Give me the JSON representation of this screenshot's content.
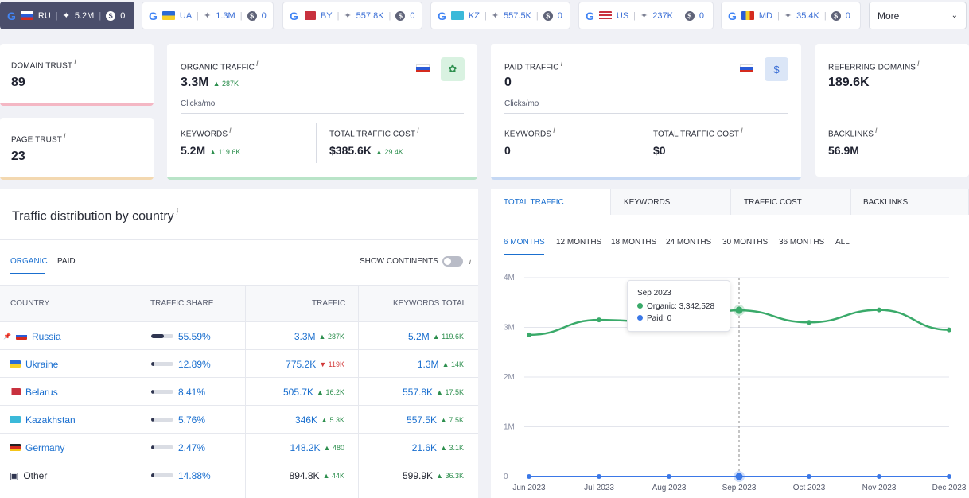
{
  "db_tabs": [
    {
      "code": "RU",
      "traffic": "5.2M",
      "paid": "0",
      "active": true
    },
    {
      "code": "UA",
      "traffic": "1.3M",
      "paid": "0"
    },
    {
      "code": "BY",
      "traffic": "557.8K",
      "paid": "0"
    },
    {
      "code": "KZ",
      "traffic": "557.5K",
      "paid": "0"
    },
    {
      "code": "US",
      "traffic": "237K",
      "paid": "0"
    },
    {
      "code": "MD",
      "traffic": "35.4K",
      "paid": "0"
    }
  ],
  "more_label": "More",
  "domain_trust": {
    "label": "DOMAIN TRUST",
    "value": "89"
  },
  "page_trust": {
    "label": "PAGE TRUST",
    "value": "23"
  },
  "organic": {
    "label": "ORGANIC TRAFFIC",
    "value": "3.3M",
    "delta": "287K",
    "unit": "Clicks/mo",
    "keywords_label": "KEYWORDS",
    "keywords": "5.2M",
    "keywords_delta": "119.6K",
    "cost_label": "TOTAL TRAFFIC COST",
    "cost": "$385.6K",
    "cost_delta": "29.4K"
  },
  "paid": {
    "label": "PAID TRAFFIC",
    "value": "0",
    "unit": "Clicks/mo",
    "keywords_label": "KEYWORDS",
    "keywords": "0",
    "cost_label": "TOTAL TRAFFIC COST",
    "cost": "$0",
    "currency_symbol": "$"
  },
  "referring": {
    "label": "REFERRING DOMAINS",
    "value": "189.6K",
    "backlinks_label": "BACKLINKS",
    "backlinks": "56.9M"
  },
  "info_mark": "i",
  "distribution": {
    "title": "Traffic distribution by country",
    "tab_organic": "ORGANIC",
    "tab_paid": "PAID",
    "show_continents": "SHOW CONTINENTS",
    "headers": {
      "country": "COUNTRY",
      "share": "TRAFFIC SHARE",
      "traffic": "TRAFFIC",
      "keywords": "KEYWORDS TOTAL"
    },
    "rows": [
      {
        "country": "Russia",
        "pin": "📌",
        "share": "55.59%",
        "share_frac": 0.5559,
        "traffic": "3.3M",
        "traffic_delta": "287K",
        "traffic_dir": "up",
        "keywords": "5.2M",
        "keywords_delta": "119.6K"
      },
      {
        "country": "Ukraine",
        "share": "12.89%",
        "share_frac": 0.1289,
        "traffic": "775.2K",
        "traffic_delta": "119K",
        "traffic_dir": "down",
        "keywords": "1.3M",
        "keywords_delta": "14K"
      },
      {
        "country": "Belarus",
        "share": "8.41%",
        "share_frac": 0.0841,
        "traffic": "505.7K",
        "traffic_delta": "16.2K",
        "traffic_dir": "up",
        "keywords": "557.8K",
        "keywords_delta": "17.5K"
      },
      {
        "country": "Kazakhstan",
        "share": "5.76%",
        "share_frac": 0.0576,
        "traffic": "346K",
        "traffic_delta": "5.3K",
        "traffic_dir": "up",
        "keywords": "557.5K",
        "keywords_delta": "7.5K"
      },
      {
        "country": "Germany",
        "share": "2.47%",
        "share_frac": 0.0247,
        "traffic": "148.2K",
        "traffic_delta": "480",
        "traffic_dir": "up",
        "keywords": "21.6K",
        "keywords_delta": "3.1K"
      },
      {
        "country": "Other",
        "share": "14.88%",
        "share_frac": 0.1488,
        "traffic": "894.8K",
        "traffic_delta": "44K",
        "traffic_dir": "up",
        "keywords": "599.9K",
        "keywords_delta": "36.3K",
        "plain": true
      }
    ]
  },
  "chart_tabs": [
    "TOTAL TRAFFIC",
    "KEYWORDS",
    "TRAFFIC COST",
    "BACKLINKS"
  ],
  "periods": [
    "6 MONTHS",
    "12 MONTHS",
    "18 MONTHS",
    "24 MONTHS",
    "30 MONTHS",
    "36 MONTHS",
    "ALL"
  ],
  "tooltip": {
    "date": "Sep 2023",
    "organic": "Organic: 3,342,528",
    "paid": "Paid: 0"
  },
  "colors": {
    "organic": "#3aaa6a",
    "paid": "#3b78e7"
  },
  "chart_data": {
    "type": "line",
    "x": [
      "Jun 2023",
      "Jul 2023",
      "Aug 2023",
      "Sep 2023",
      "Oct 2023",
      "Nov 2023",
      "Dec 2023"
    ],
    "series": [
      {
        "name": "Organic",
        "values": [
          2850000,
          3150000,
          3100000,
          3342528,
          3100000,
          3350000,
          2950000
        ]
      },
      {
        "name": "Paid",
        "values": [
          0,
          0,
          0,
          0,
          0,
          0,
          0
        ]
      }
    ],
    "yticks": [
      "0",
      "1M",
      "2M",
      "3M",
      "4M"
    ],
    "ylim": [
      0,
      4000000
    ],
    "highlight_index": 3
  }
}
